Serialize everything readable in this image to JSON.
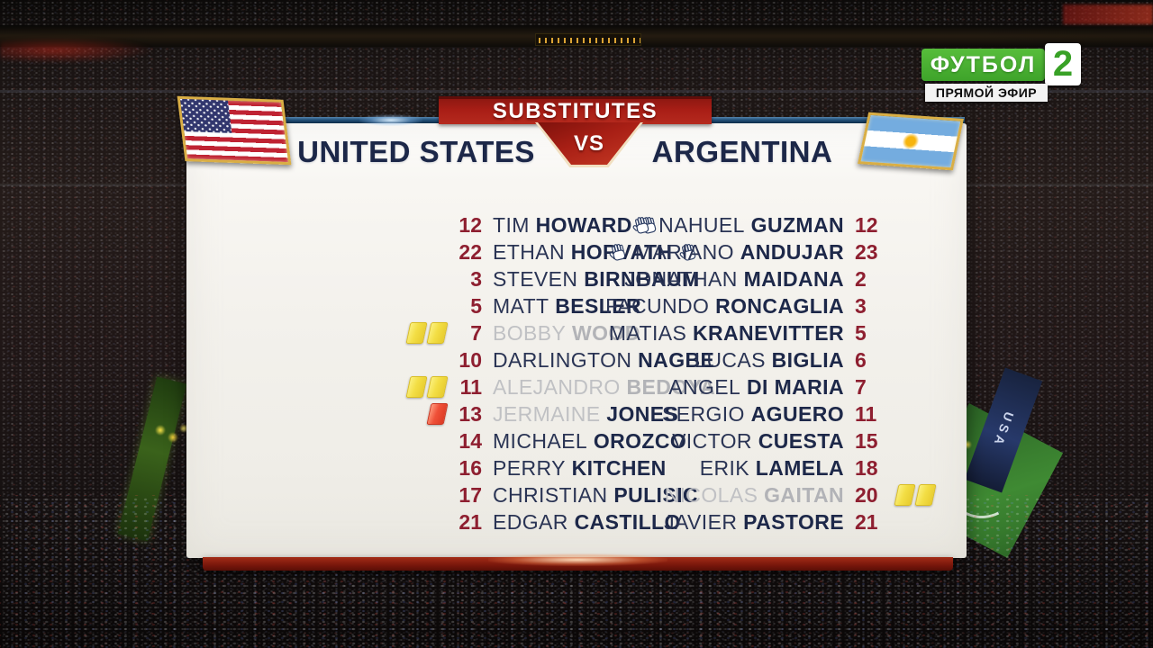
{
  "broadcast": {
    "channel_name": "ФУТБОЛ",
    "channel_number": "2",
    "live_label": "ПРЯМОЙ ЭФИР"
  },
  "stadium": {
    "banner_usa": "USA"
  },
  "panel": {
    "title": "SUBSTITUTES",
    "vs_label": "VS",
    "home": {
      "name": "UNITED STATES",
      "flag": "usa",
      "players": [
        {
          "number": "12",
          "first": "TIM",
          "last": "HOWARD",
          "glove": true,
          "cards": [],
          "dimmed": "none"
        },
        {
          "number": "22",
          "first": "ETHAN",
          "last": "HORVATH",
          "glove": true,
          "cards": [],
          "dimmed": "none"
        },
        {
          "number": "3",
          "first": "STEVEN",
          "last": "BIRNBAUM",
          "glove": false,
          "cards": [],
          "dimmed": "none"
        },
        {
          "number": "5",
          "first": "MATT",
          "last": "BESLER",
          "glove": false,
          "cards": [],
          "dimmed": "none"
        },
        {
          "number": "7",
          "first": "BOBBY",
          "last": "WOOD",
          "glove": false,
          "cards": [
            "yellow",
            "yellow"
          ],
          "dimmed": "full"
        },
        {
          "number": "10",
          "first": "DARLINGTON",
          "last": "NAGBE",
          "glove": false,
          "cards": [],
          "dimmed": "none"
        },
        {
          "number": "11",
          "first": "ALEJANDRO",
          "last": "BEDOYA",
          "glove": false,
          "cards": [
            "yellow",
            "yellow"
          ],
          "dimmed": "full"
        },
        {
          "number": "13",
          "first": "JERMAINE",
          "last": "JONES",
          "glove": false,
          "cards": [
            "red"
          ],
          "dimmed": "first"
        },
        {
          "number": "14",
          "first": "MICHAEL",
          "last": "OROZCO",
          "glove": false,
          "cards": [],
          "dimmed": "none"
        },
        {
          "number": "16",
          "first": "PERRY",
          "last": "KITCHEN",
          "glove": false,
          "cards": [],
          "dimmed": "none"
        },
        {
          "number": "17",
          "first": "CHRISTIAN",
          "last": "PULISIC",
          "glove": false,
          "cards": [],
          "dimmed": "none"
        },
        {
          "number": "21",
          "first": "EDGAR",
          "last": "CASTILLO",
          "glove": false,
          "cards": [],
          "dimmed": "none"
        }
      ]
    },
    "away": {
      "name": "ARGENTINA",
      "flag": "argentina",
      "players": [
        {
          "number": "12",
          "first": "NAHUEL",
          "last": "GUZMAN",
          "glove": true,
          "cards": [],
          "dimmed": "none"
        },
        {
          "number": "23",
          "first": "MARIANO",
          "last": "ANDUJAR",
          "glove": true,
          "cards": [],
          "dimmed": "none"
        },
        {
          "number": "2",
          "first": "JONATHAN",
          "last": "MAIDANA",
          "glove": false,
          "cards": [],
          "dimmed": "none"
        },
        {
          "number": "3",
          "first": "FACUNDO",
          "last": "RONCAGLIA",
          "glove": false,
          "cards": [],
          "dimmed": "none"
        },
        {
          "number": "5",
          "first": "MATIAS",
          "last": "KRANEVITTER",
          "glove": false,
          "cards": [],
          "dimmed": "none"
        },
        {
          "number": "6",
          "first": "LUCAS",
          "last": "BIGLIA",
          "glove": false,
          "cards": [],
          "dimmed": "none"
        },
        {
          "number": "7",
          "first": "ANGEL",
          "last": "DI MARIA",
          "glove": false,
          "cards": [],
          "dimmed": "none"
        },
        {
          "number": "11",
          "first": "SERGIO",
          "last": "AGUERO",
          "glove": false,
          "cards": [],
          "dimmed": "none"
        },
        {
          "number": "15",
          "first": "VICTOR",
          "last": "CUESTA",
          "glove": false,
          "cards": [],
          "dimmed": "none"
        },
        {
          "number": "18",
          "first": "ERIK",
          "last": "LAMELA",
          "glove": false,
          "cards": [],
          "dimmed": "none"
        },
        {
          "number": "20",
          "first": "NICOLAS",
          "last": "GAITAN",
          "glove": false,
          "cards": [
            "yellow",
            "yellow"
          ],
          "dimmed": "full"
        },
        {
          "number": "21",
          "first": "JAVIER",
          "last": "PASTORE",
          "glove": false,
          "cards": [],
          "dimmed": "none"
        }
      ]
    }
  },
  "colors": {
    "banner_red": "#a91e16",
    "navy_text": "#1d2849",
    "number_maroon": "#8e1f30",
    "suspended_gray": "#b6b7ba",
    "gold_flag_border": "#d9ae45",
    "channel_green": "#46b02e",
    "yellow_card": "#f3de45",
    "red_card": "#ef5038"
  }
}
